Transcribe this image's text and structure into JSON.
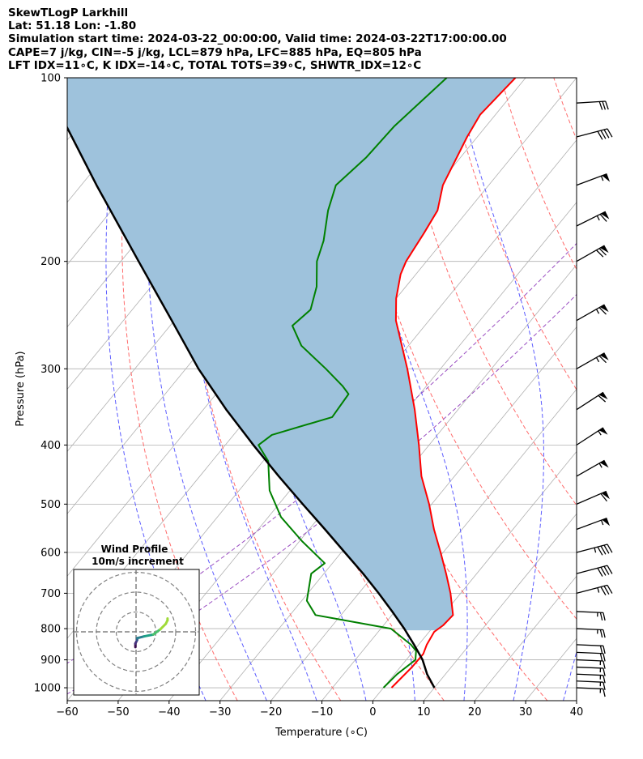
{
  "header": {
    "line1": "SkewTLogP Larkhill",
    "line2": "Lat: 51.18   Lon: -1.80",
    "line3": "Simulation start time: 2024-03-22_00:00:00, Valid time: 2024-03-22T17:00:00.00",
    "line4": "CAPE=7 j/kg, CIN=-5 j/kg, LCL=879 hPa, LFC=885 hPa, EQ=805 hPa",
    "line5": "LFT IDX=11∘C, K IDX=-14∘C, TOTAL TOTS=39∘C, SHWTR_IDX=12∘C"
  },
  "chart_data": {
    "type": "skewt-logp",
    "xlabel": "Temperature (∘C)",
    "ylabel": "Pressure (hPa)",
    "xlim": [
      -60,
      40
    ],
    "ylim": [
      1050,
      100
    ],
    "y_scale": "log",
    "x_ticks": [
      "−60",
      "−50",
      "−40",
      "−30",
      "−20",
      "−10",
      "0",
      "10",
      "20",
      "30",
      "40"
    ],
    "y_ticks": [
      "100",
      "200",
      "300",
      "400",
      "500",
      "600",
      "700",
      "800",
      "900",
      "1000"
    ],
    "grid": true,
    "temperature": {
      "color": "#ff0000",
      "pressure": [
        1000,
        925,
        880,
        850,
        810,
        790,
        760,
        700,
        650,
        600,
        550,
        500,
        450,
        400,
        350,
        300,
        250,
        230,
        210,
        200,
        180,
        165,
        150,
        125,
        115,
        100
      ],
      "temp": [
        1.6,
        2.3,
        2.4,
        1.6,
        1.0,
        1.7,
        2.0,
        -2.0,
        -6.0,
        -10.5,
        -15.5,
        -20.5,
        -26.5,
        -32.0,
        -38.5,
        -46.5,
        -56.5,
        -60.0,
        -63.0,
        -64.0,
        -65.0,
        -66.0,
        -69.0,
        -72.0,
        -73.0,
        -72.0
      ]
    },
    "dewpoint": {
      "color": "#008000",
      "pressure": [
        1000,
        950,
        900,
        870,
        850,
        800,
        760,
        720,
        650,
        625,
        575,
        525,
        475,
        425,
        400,
        385,
        360,
        330,
        320,
        300,
        275,
        255,
        240,
        220,
        200,
        185,
        165,
        150,
        135,
        120,
        100
      ],
      "temp": [
        0.0,
        0.5,
        1.8,
        0.5,
        -1.5,
        -8.0,
        -25.0,
        -29.0,
        -32.5,
        -31.5,
        -39.5,
        -47.5,
        -54.0,
        -59.0,
        -63.5,
        -62.5,
        -53.5,
        -54.0,
        -56.5,
        -62.5,
        -71.0,
        -76.0,
        -75.0,
        -77.5,
        -81.5,
        -83.5,
        -87.5,
        -90.0,
        -88.5,
        -88.0,
        -85.5
      ]
    },
    "parcel": {
      "color": "#000000",
      "pressure": [
        1000,
        950,
        900,
        880,
        850,
        800,
        750,
        700,
        650,
        600,
        550,
        500,
        450,
        400,
        350,
        300,
        250,
        200,
        150,
        100
      ],
      "temp": [
        10.0,
        6.4,
        3.2,
        1.6,
        -0.9,
        -5.4,
        -10.5,
        -16.1,
        -22.3,
        -29.3,
        -36.9,
        -45.3,
        -54.5,
        -64.5,
        -75.5,
        -87.5,
        -100.5,
        -116.5,
        -137.0,
        -165.0
      ]
    },
    "cape_shading_color": "#9ec2dc",
    "wind_barbs": {
      "color": "#000000",
      "pressure": [
        1000,
        975,
        950,
        925,
        900,
        875,
        850,
        800,
        750,
        700,
        650,
        600,
        550,
        500,
        450,
        400,
        350,
        300,
        250,
        200,
        175,
        150,
        125,
        110
      ],
      "speed_kt": [
        15,
        15,
        15,
        15,
        15,
        20,
        20,
        25,
        25,
        35,
        40,
        45,
        55,
        60,
        55,
        55,
        60,
        65,
        65,
        70,
        65,
        55,
        40,
        30
      ],
      "direction_deg": [
        300,
        300,
        300,
        300,
        300,
        300,
        300,
        300,
        300,
        270,
        270,
        270,
        260,
        255,
        245,
        240,
        240,
        245,
        245,
        245,
        250,
        260,
        270,
        290
      ]
    },
    "inset": {
      "title1": "Wind Profile",
      "title2": "10m/s increment",
      "ring_radii_ms": [
        10,
        20,
        30
      ],
      "hodograph_u": [
        -4,
        -4,
        -3,
        -3,
        1,
        6,
        10,
        13,
        14,
        14
      ],
      "hodograph_v": [
        -4,
        -2,
        0,
        1,
        2,
        3,
        6,
        9,
        11,
        12
      ],
      "hodograph_colors": [
        "#3b0f50",
        "#46327e",
        "#365c8d",
        "#277f8e",
        "#1fa187",
        "#4ac16d",
        "#a0da39",
        "#a0da39",
        "#a0da39",
        "#a0da39"
      ]
    }
  }
}
